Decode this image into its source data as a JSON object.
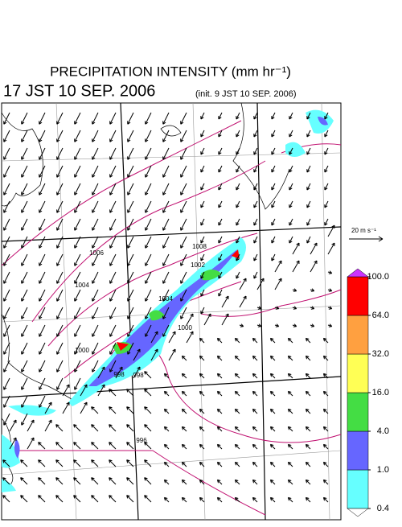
{
  "header": {
    "title": "PRECIPITATION INTENSITY (mm hr⁻¹)",
    "time": "17 JST 10 SEP. 2006",
    "init": "(init. 9 JST 10 SEP. 2006)"
  },
  "reference_vector": {
    "label": "20 m s⁻¹"
  },
  "contour_labels": [
    "1008",
    "1006",
    "1004",
    "1002",
    "1004",
    "1000",
    "1000",
    "998",
    "998",
    "996"
  ],
  "colorbar": {
    "levels": [
      {
        "value": 0.4,
        "label": "0.4"
      },
      {
        "value": 1,
        "label": "1.0"
      },
      {
        "value": 4,
        "label": "4.0"
      },
      {
        "value": 16,
        "label": "16.0"
      },
      {
        "value": 32,
        "label": "32.0"
      },
      {
        "value": 64,
        "label": "64.0"
      },
      {
        "value": 100,
        "label": "100.0"
      }
    ],
    "colors": [
      "#66ffff",
      "#6666ff",
      "#44dd44",
      "#ffff55",
      "#ffa040",
      "#ff0000"
    ],
    "under_color": "#ffffff",
    "over_color": "#cc33ff"
  }
}
